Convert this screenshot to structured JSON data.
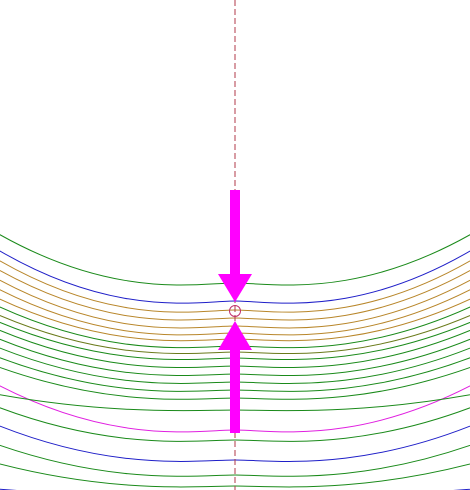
{
  "drawing": {
    "background": "#ffffff",
    "centerline_color": "#b03a48",
    "arrow_color": "#ff00ff",
    "marker_color": "#c0306a",
    "contours": [
      {
        "color": "#1a8a1a",
        "role": "outer-contour"
      },
      {
        "color": "#1f1fc8",
        "role": "boundary"
      },
      {
        "color": "#b8862a",
        "role": "contour"
      },
      {
        "color": "#b8862a",
        "role": "contour"
      },
      {
        "color": "#b8862a",
        "role": "contour"
      },
      {
        "color": "#b8862a",
        "role": "contour"
      },
      {
        "color": "#b8862a",
        "role": "contour"
      },
      {
        "color": "#1a8a1a",
        "role": "contour"
      },
      {
        "color": "#6a7a1a",
        "role": "contour"
      },
      {
        "color": "#1a8a1a",
        "role": "contour"
      },
      {
        "color": "#1a8a1a",
        "role": "contour"
      },
      {
        "color": "#1a8a1a",
        "role": "contour"
      },
      {
        "color": "#1a8a1a",
        "role": "contour"
      },
      {
        "color": "#1a8a1a",
        "role": "contour"
      },
      {
        "color": "#1a8a1a",
        "role": "contour"
      },
      {
        "color": "#e020e0",
        "role": "highlight"
      },
      {
        "color": "#1a8a1a",
        "role": "contour"
      },
      {
        "color": "#1a8a1a",
        "role": "contour"
      },
      {
        "color": "#1f1fc8",
        "role": "boundary"
      },
      {
        "color": "#1a8a1a",
        "role": "contour"
      },
      {
        "color": "#1a8a1a",
        "role": "contour"
      },
      {
        "color": "#1f1fc8",
        "role": "boundary"
      }
    ]
  }
}
